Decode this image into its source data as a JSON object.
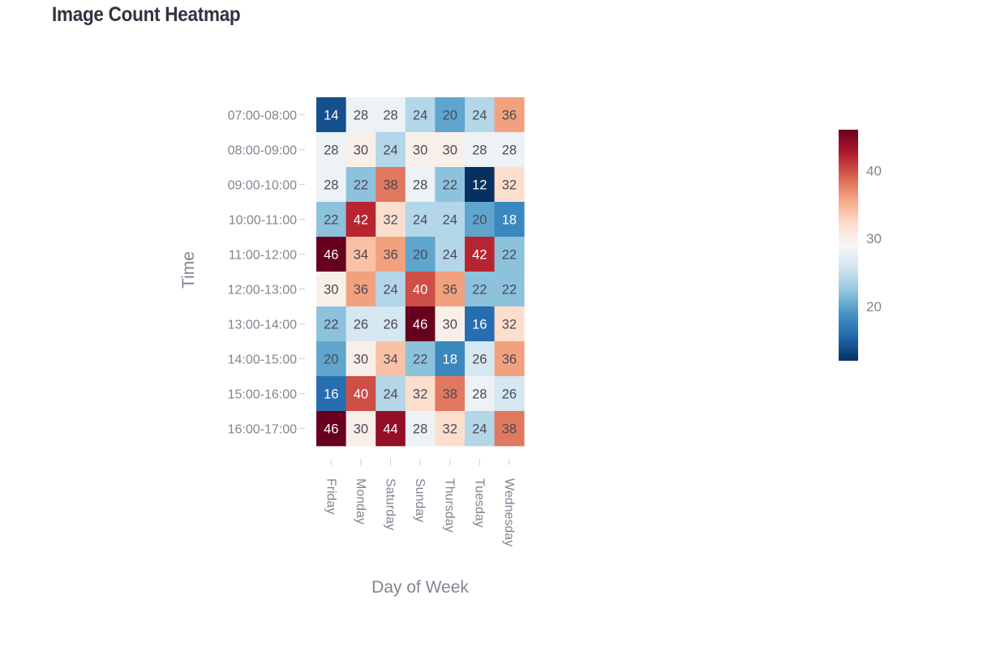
{
  "page": {
    "title": "Image Count Heatmap"
  },
  "chart_data": {
    "type": "heatmap",
    "title": "",
    "xlabel": "Day of Week",
    "ylabel": "Time",
    "x": [
      "Friday",
      "Monday",
      "Saturday",
      "Sunday",
      "Thursday",
      "Tuesday",
      "Wednesday"
    ],
    "y": [
      "07:00-08:00",
      "08:00-09:00",
      "09:00-10:00",
      "10:00-11:00",
      "11:00-12:00",
      "12:00-13:00",
      "13:00-14:00",
      "14:00-15:00",
      "15:00-16:00",
      "16:00-17:00"
    ],
    "values": [
      [
        14,
        28,
        28,
        24,
        20,
        24,
        36
      ],
      [
        28,
        30,
        24,
        30,
        30,
        28,
        28
      ],
      [
        28,
        22,
        38,
        28,
        22,
        12,
        32
      ],
      [
        22,
        42,
        32,
        24,
        24,
        20,
        18
      ],
      [
        46,
        34,
        36,
        20,
        24,
        42,
        22
      ],
      [
        30,
        36,
        24,
        40,
        36,
        22,
        22
      ],
      [
        22,
        26,
        26,
        46,
        30,
        16,
        32
      ],
      [
        20,
        30,
        34,
        22,
        18,
        26,
        36
      ],
      [
        16,
        40,
        24,
        32,
        38,
        28,
        26
      ],
      [
        46,
        30,
        44,
        28,
        32,
        24,
        38
      ]
    ],
    "zrange": [
      12,
      46
    ],
    "colorscale": "RdBu (reversed)",
    "colorbar": {
      "ticks": [
        20,
        30,
        40
      ],
      "tick_labels": [
        "20",
        "30",
        "40"
      ]
    },
    "colors": {
      "low": "#053061",
      "mid": "#f7f7f7",
      "high": "#67001f",
      "axis_text": "#838592",
      "title_text": "#31333f"
    }
  }
}
